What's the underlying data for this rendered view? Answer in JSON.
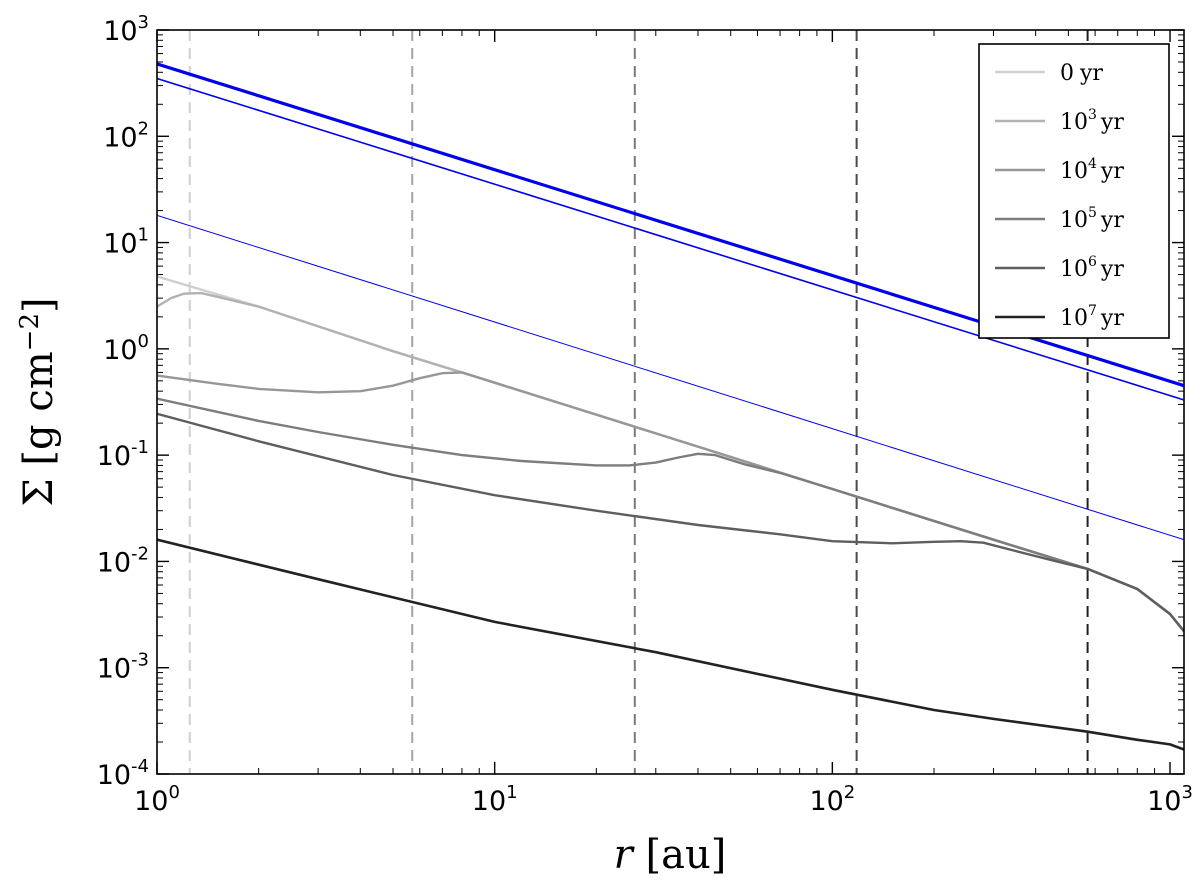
{
  "chart_data": {
    "type": "line",
    "xscale": "log",
    "yscale": "log",
    "xlim": [
      1,
      1100
    ],
    "ylim": [
      0.0001,
      1000
    ],
    "xlabel": "r [au]",
    "ylabel": "Σ [g cm^-2]",
    "x_ticks": [
      {
        "value": 1,
        "base": "10",
        "exp": "0"
      },
      {
        "value": 10,
        "base": "10",
        "exp": "1"
      },
      {
        "value": 100,
        "base": "10",
        "exp": "2"
      },
      {
        "value": 1000,
        "base": "10",
        "exp": "3"
      }
    ],
    "y_ticks": [
      {
        "value": 0.0001,
        "base": "10",
        "exp": "-4"
      },
      {
        "value": 0.001,
        "base": "10",
        "exp": "-3"
      },
      {
        "value": 0.01,
        "base": "10",
        "exp": "-2"
      },
      {
        "value": 0.1,
        "base": "10",
        "exp": "-1"
      },
      {
        "value": 1,
        "base": "10",
        "exp": "0"
      },
      {
        "value": 10,
        "base": "10",
        "exp": "1"
      },
      {
        "value": 100,
        "base": "10",
        "exp": "2"
      },
      {
        "value": 1000,
        "base": "10",
        "exp": "3"
      }
    ],
    "grid": false,
    "legend": {
      "position": "top-right",
      "entries": [
        {
          "base": "0",
          "exp": "",
          "unit": "yr",
          "color": "#cfcfcf"
        },
        {
          "base": "10",
          "exp": "3",
          "unit": "yr",
          "color": "#b2b2b2"
        },
        {
          "base": "10",
          "exp": "4",
          "unit": "yr",
          "color": "#979797"
        },
        {
          "base": "10",
          "exp": "5",
          "unit": "yr",
          "color": "#7d7d7d"
        },
        {
          "base": "10",
          "exp": "6",
          "unit": "yr",
          "color": "#5e5e5e"
        },
        {
          "base": "10",
          "exp": "7",
          "unit": "yr",
          "color": "#222222"
        }
      ]
    },
    "reference_lines": [
      {
        "color": "#0000ee",
        "width": 3.2,
        "points": [
          [
            1,
            480
          ],
          [
            1100,
            0.45
          ]
        ]
      },
      {
        "color": "#0000ee",
        "width": 1.6,
        "points": [
          [
            1,
            350
          ],
          [
            1100,
            0.33
          ]
        ]
      },
      {
        "color": "#0000ee",
        "width": 1.0,
        "points": [
          [
            1,
            18
          ],
          [
            1100,
            0.016
          ]
        ]
      }
    ],
    "vlines": [
      {
        "x": 1.25,
        "color": "#cfcfcf"
      },
      {
        "x": 5.7,
        "color": "#a5a5a5"
      },
      {
        "x": 26,
        "color": "#7a7a7a"
      },
      {
        "x": 118,
        "color": "#4a4a4a"
      },
      {
        "x": 570,
        "color": "#222222"
      }
    ],
    "series": [
      {
        "name": "0 yr",
        "color": "#cfcfcf",
        "width": 2.4,
        "points": [
          [
            1,
            4.8
          ],
          [
            2,
            2.5
          ],
          [
            5,
            0.95
          ],
          [
            10,
            0.48
          ],
          [
            30,
            0.16
          ],
          [
            100,
            0.048
          ],
          [
            300,
            0.016
          ],
          [
            570,
            0.0085
          ],
          [
            800,
            0.0055
          ],
          [
            1000,
            0.0032
          ],
          [
            1100,
            0.0022
          ]
        ]
      },
      {
        "name": "10^3 yr",
        "color": "#b2b2b2",
        "width": 2.4,
        "points": [
          [
            1,
            2.5
          ],
          [
            1.1,
            3.0
          ],
          [
            1.2,
            3.3
          ],
          [
            1.35,
            3.35
          ],
          [
            1.5,
            3.1
          ],
          [
            2,
            2.5
          ],
          [
            5,
            0.95
          ],
          [
            10,
            0.48
          ],
          [
            30,
            0.16
          ],
          [
            100,
            0.048
          ],
          [
            300,
            0.016
          ],
          [
            570,
            0.0085
          ],
          [
            800,
            0.0055
          ],
          [
            1000,
            0.0032
          ],
          [
            1100,
            0.0022
          ]
        ]
      },
      {
        "name": "10^4 yr",
        "color": "#979797",
        "width": 2.4,
        "points": [
          [
            1,
            0.56
          ],
          [
            1.5,
            0.47
          ],
          [
            2,
            0.42
          ],
          [
            3,
            0.39
          ],
          [
            4,
            0.4
          ],
          [
            5,
            0.45
          ],
          [
            6,
            0.53
          ],
          [
            7,
            0.59
          ],
          [
            8,
            0.6
          ],
          [
            10,
            0.48
          ],
          [
            30,
            0.16
          ],
          [
            100,
            0.048
          ],
          [
            300,
            0.016
          ],
          [
            570,
            0.0085
          ],
          [
            800,
            0.0055
          ],
          [
            1000,
            0.0032
          ],
          [
            1100,
            0.0022
          ]
        ]
      },
      {
        "name": "10^5 yr",
        "color": "#7d7d7d",
        "width": 2.4,
        "points": [
          [
            1,
            0.34
          ],
          [
            2,
            0.21
          ],
          [
            3,
            0.165
          ],
          [
            5,
            0.125
          ],
          [
            8,
            0.1
          ],
          [
            12,
            0.088
          ],
          [
            20,
            0.08
          ],
          [
            25,
            0.08
          ],
          [
            30,
            0.085
          ],
          [
            35,
            0.095
          ],
          [
            40,
            0.103
          ],
          [
            45,
            0.1
          ],
          [
            55,
            0.082
          ],
          [
            70,
            0.068
          ],
          [
            100,
            0.048
          ],
          [
            300,
            0.016
          ],
          [
            570,
            0.0085
          ],
          [
            800,
            0.0055
          ],
          [
            1000,
            0.0032
          ],
          [
            1100,
            0.0022
          ]
        ]
      },
      {
        "name": "10^6 yr",
        "color": "#5e5e5e",
        "width": 2.4,
        "points": [
          [
            1,
            0.245
          ],
          [
            2,
            0.135
          ],
          [
            5,
            0.065
          ],
          [
            10,
            0.042
          ],
          [
            20,
            0.03
          ],
          [
            40,
            0.022
          ],
          [
            70,
            0.018
          ],
          [
            100,
            0.0155
          ],
          [
            150,
            0.0148
          ],
          [
            200,
            0.0153
          ],
          [
            240,
            0.0155
          ],
          [
            280,
            0.015
          ],
          [
            350,
            0.0125
          ],
          [
            450,
            0.0102
          ],
          [
            570,
            0.0085
          ],
          [
            800,
            0.0055
          ],
          [
            1000,
            0.0032
          ],
          [
            1100,
            0.0022
          ]
        ]
      },
      {
        "name": "10^7 yr",
        "color": "#222222",
        "width": 2.6,
        "points": [
          [
            1,
            0.016
          ],
          [
            3,
            0.0068
          ],
          [
            10,
            0.0027
          ],
          [
            30,
            0.0014
          ],
          [
            100,
            0.00062
          ],
          [
            200,
            0.0004
          ],
          [
            300,
            0.00033
          ],
          [
            570,
            0.00025
          ],
          [
            800,
            0.00021
          ],
          [
            1000,
            0.00019
          ],
          [
            1100,
            0.00017
          ]
        ]
      }
    ]
  }
}
